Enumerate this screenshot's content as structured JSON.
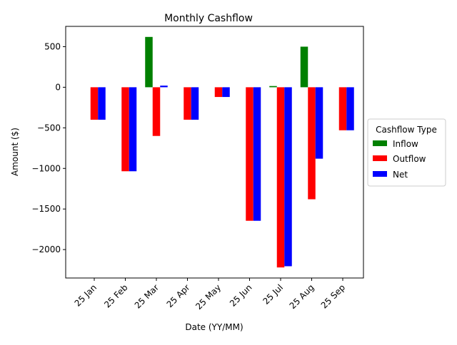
{
  "chart_data": {
    "type": "bar",
    "title": "Monthly Cashflow",
    "xlabel": "Date (YY/MM)",
    "ylabel": "Amount ($)",
    "categories": [
      "25 Jan",
      "25 Feb",
      "25 Mar",
      "25 Apr",
      "25 May",
      "25 Jun",
      "25 Jul",
      "25 Aug",
      "25 Sep"
    ],
    "series": [
      {
        "name": "Inflow",
        "color": "#008000",
        "values": [
          0,
          0,
          620,
          0,
          0,
          0,
          15,
          500,
          0
        ]
      },
      {
        "name": "Outflow",
        "color": "#ff0000",
        "values": [
          -400,
          -1035,
          -600,
          -400,
          -120,
          -1645,
          -2220,
          -1380,
          -530
        ]
      },
      {
        "name": "Net",
        "color": "#0000ff",
        "values": [
          -400,
          -1035,
          20,
          -400,
          -120,
          -1645,
          -2205,
          -880,
          -530
        ]
      }
    ],
    "ylim": [
      -2350,
      750
    ],
    "yticks": [
      500,
      0,
      -500,
      -1000,
      -1500,
      -2000
    ],
    "ytick_labels": [
      "500",
      "0",
      "−500",
      "−1000",
      "−1500",
      "−2000"
    ],
    "grid": false,
    "legend": {
      "title": "Cashflow Type",
      "placement": "outside-right"
    }
  }
}
